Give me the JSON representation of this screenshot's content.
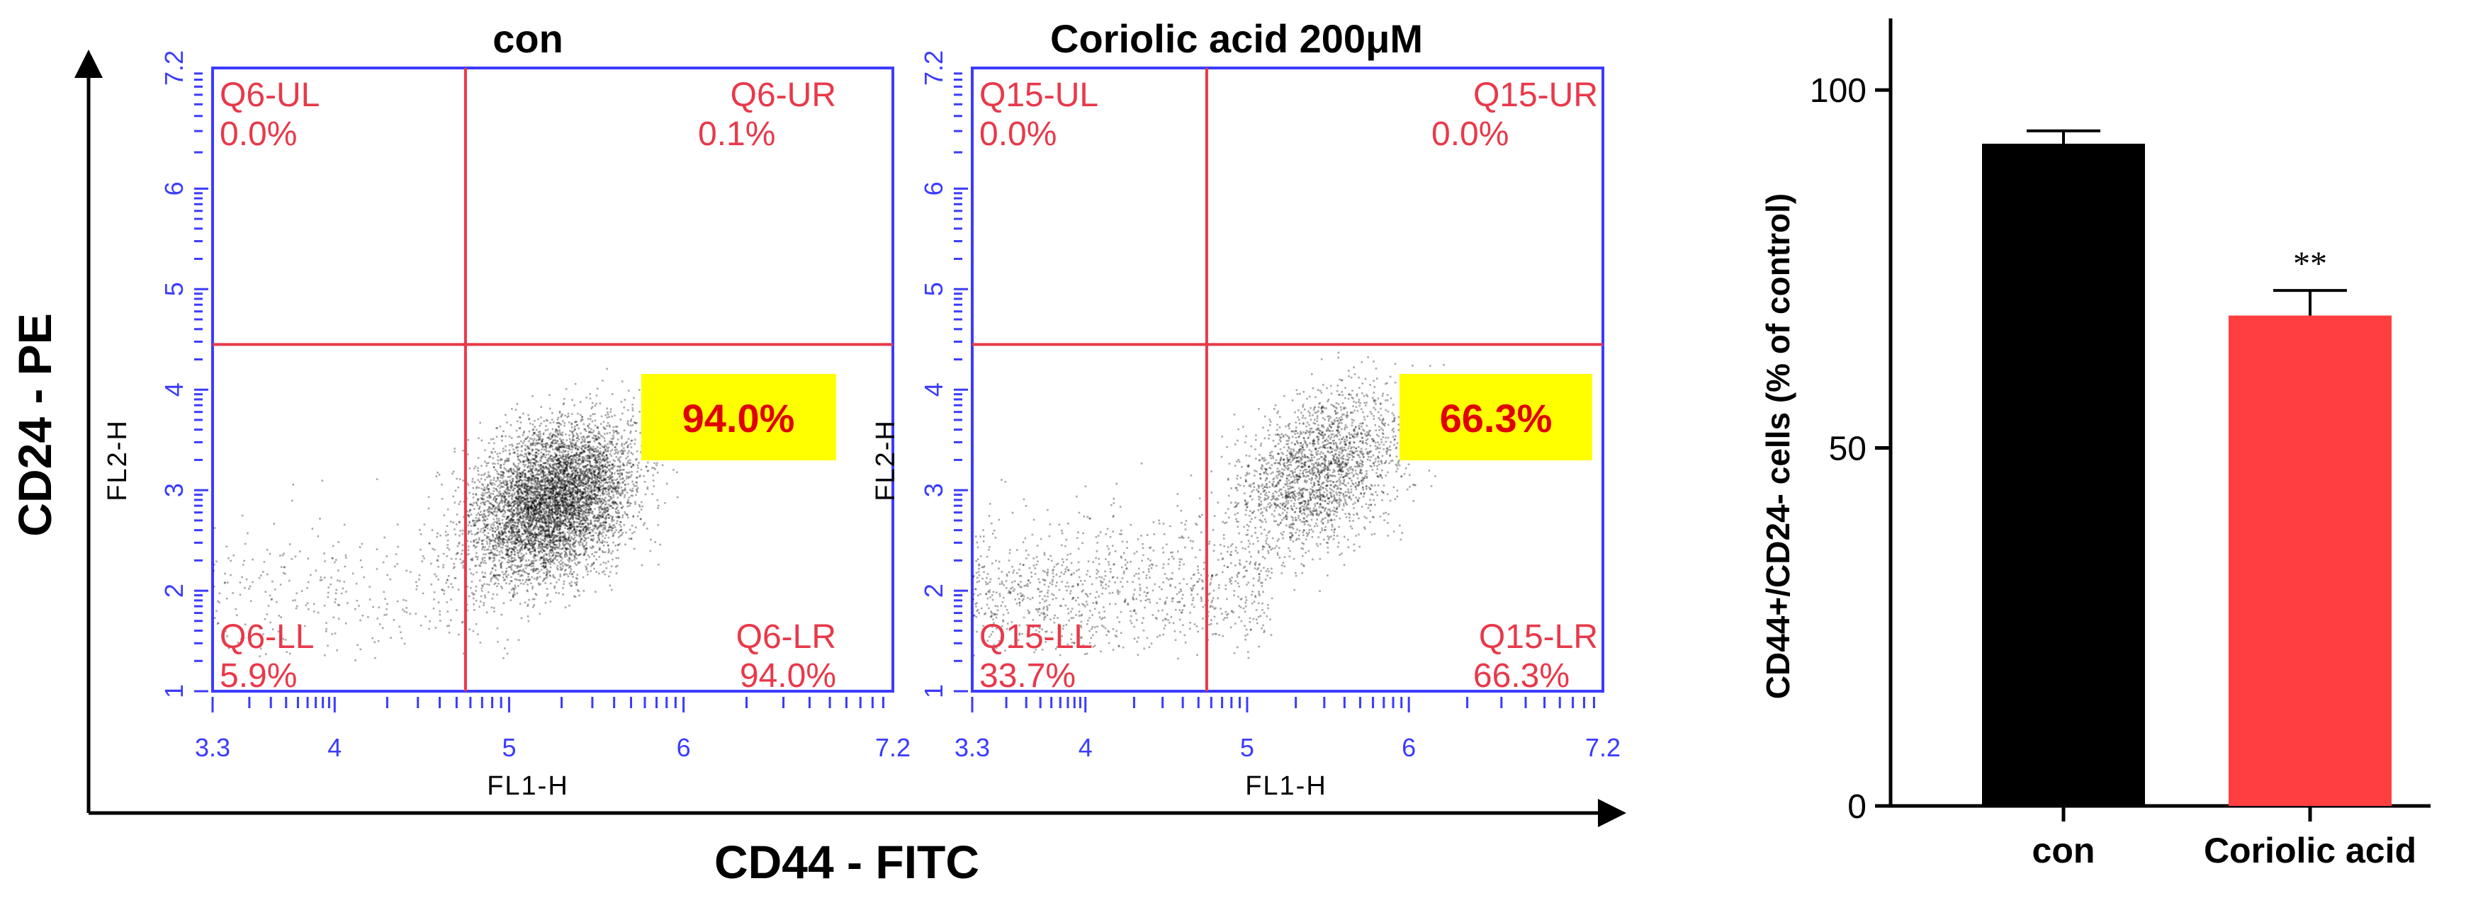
{
  "chart_data": [
    {
      "type": "scatter",
      "panel_id": "con",
      "title": "con",
      "xlabel": "FL1-H",
      "ylabel": "FL2-H",
      "xlim": [
        3.3,
        7.2
      ],
      "ylim": [
        1,
        7.2
      ],
      "x_ticks": [
        "3.3",
        "4",
        "5",
        "6",
        "7.2"
      ],
      "y_ticks": [
        "1",
        "2",
        "3",
        "4",
        "5",
        "6",
        "7.2"
      ],
      "gate": {
        "x": 4.75,
        "y": 4.45
      },
      "quadrants": [
        {
          "name": "Q6-UL",
          "value": "0.0%",
          "pos": "top-left"
        },
        {
          "name": "Q6-UR",
          "value": "0.1%",
          "pos": "top-right"
        },
        {
          "name": "Q6-LL",
          "value": "5.9%",
          "pos": "bottom-left"
        },
        {
          "name": "Q6-LR",
          "value": "94.0%",
          "pos": "bottom-right"
        }
      ],
      "highlight": "94.0%",
      "cloud": {
        "cx": 5.25,
        "cy": 2.9,
        "sx": 0.28,
        "sy": 0.45,
        "n": 6500,
        "seed": 11,
        "tail": 0.06
      }
    },
    {
      "type": "scatter",
      "panel_id": "coriolic",
      "title": "Coriolic acid 200μM",
      "xlabel": "FL1-H",
      "ylabel": "FL2-H",
      "xlim": [
        3.3,
        7.2
      ],
      "ylim": [
        1,
        7.2
      ],
      "x_ticks": [
        "3.3",
        "4",
        "5",
        "6",
        "7.2"
      ],
      "y_ticks": [
        "1",
        "2",
        "3",
        "4",
        "5",
        "6",
        "7.2"
      ],
      "gate": {
        "x": 4.75,
        "y": 4.45
      },
      "quadrants": [
        {
          "name": "Q15-UL",
          "value": "0.0%",
          "pos": "top-left"
        },
        {
          "name": "Q15-UR",
          "value": "0.0%",
          "pos": "top-right"
        },
        {
          "name": "Q15-LL",
          "value": "33.7%",
          "pos": "bottom-left"
        },
        {
          "name": "Q15-LR",
          "value": "66.3%",
          "pos": "bottom-right"
        }
      ],
      "highlight": "66.3%",
      "cloud": {
        "cx": 5.45,
        "cy": 3.2,
        "sx": 0.32,
        "sy": 0.45,
        "n": 3200,
        "seed": 29,
        "tail": 0.32
      }
    },
    {
      "type": "bar",
      "panel_id": "summary",
      "categories": [
        "con",
        "Coriolic acid"
      ],
      "values": [
        92.5,
        68.5
      ],
      "errors": [
        1.8,
        3.5
      ],
      "colors": [
        "#000000",
        "#ff3f3f"
      ],
      "ylim": [
        0,
        110
      ],
      "yticks": [
        0,
        50,
        100
      ],
      "ylabel": "CD44+/CD24- cells (% of control)",
      "annotations": [
        {
          "category": "Coriolic acid",
          "text": "**"
        }
      ]
    }
  ],
  "figure": {
    "ylabel": "CD24 - PE",
    "xlabel": "CD44 - FITC"
  },
  "colors": {
    "plot_frame": "#3b3bff",
    "gate_line": "#e8394a",
    "quadrant_text": "#e8394a",
    "highlight_fill": "#ffff00",
    "highlight_text": "#e00000"
  }
}
